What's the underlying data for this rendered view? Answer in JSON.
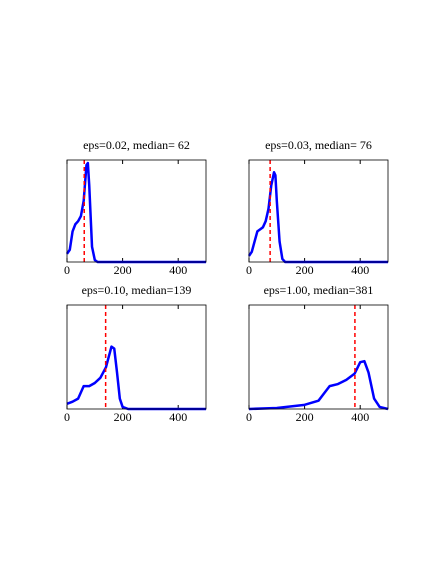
{
  "chart_data": [
    {
      "type": "line",
      "title": "eps=0.02, median= 62",
      "x": [
        0,
        10,
        20,
        30,
        40,
        50,
        60,
        70,
        75,
        80,
        90,
        100,
        110,
        500
      ],
      "series": [
        {
          "color": "#0000ff",
          "values": [
            0.08,
            0.12,
            0.3,
            0.37,
            0.4,
            0.45,
            0.6,
            0.95,
            0.97,
            0.75,
            0.15,
            0.02,
            0,
            0
          ]
        }
      ],
      "xlim": [
        0,
        500
      ],
      "ylim": [
        0,
        1
      ],
      "xticks": [
        0,
        200,
        400
      ],
      "vline": {
        "x": 62,
        "color": "#ff0000"
      }
    },
    {
      "type": "line",
      "title": "eps=0.03, median= 76",
      "x": [
        0,
        10,
        20,
        30,
        40,
        50,
        60,
        70,
        80,
        90,
        95,
        100,
        110,
        120,
        130,
        500
      ],
      "series": [
        {
          "color": "#0000ff",
          "values": [
            0.06,
            0.1,
            0.2,
            0.3,
            0.32,
            0.34,
            0.4,
            0.52,
            0.75,
            0.88,
            0.85,
            0.6,
            0.2,
            0.03,
            0,
            0
          ]
        }
      ],
      "xlim": [
        0,
        500
      ],
      "ylim": [
        0,
        1
      ],
      "xticks": [
        0,
        200,
        400
      ],
      "vline": {
        "x": 76,
        "color": "#ff0000"
      }
    },
    {
      "type": "line",
      "title": "eps=0.10, median=139",
      "x": [
        0,
        20,
        40,
        60,
        80,
        100,
        120,
        140,
        160,
        170,
        180,
        190,
        200,
        220,
        500
      ],
      "series": [
        {
          "color": "#0000ff",
          "values": [
            0.05,
            0.07,
            0.1,
            0.22,
            0.22,
            0.25,
            0.3,
            0.4,
            0.6,
            0.58,
            0.35,
            0.1,
            0.02,
            0,
            0
          ]
        }
      ],
      "xlim": [
        0,
        500
      ],
      "ylim": [
        0,
        1
      ],
      "xticks": [
        0,
        200,
        400
      ],
      "vline": {
        "x": 139,
        "color": "#ff0000"
      }
    },
    {
      "type": "line",
      "title": "eps=1.00, median=381",
      "x": [
        0,
        100,
        200,
        250,
        270,
        290,
        320,
        350,
        380,
        400,
        415,
        430,
        450,
        470,
        500
      ],
      "series": [
        {
          "color": "#0000ff",
          "values": [
            0,
            0.01,
            0.04,
            0.08,
            0.15,
            0.22,
            0.24,
            0.28,
            0.34,
            0.45,
            0.46,
            0.35,
            0.1,
            0.02,
            0
          ]
        }
      ],
      "xlim": [
        0,
        500
      ],
      "ylim": [
        0,
        1
      ],
      "xticks": [
        0,
        200,
        400
      ],
      "vline": {
        "x": 381,
        "color": "#ff0000"
      }
    }
  ]
}
